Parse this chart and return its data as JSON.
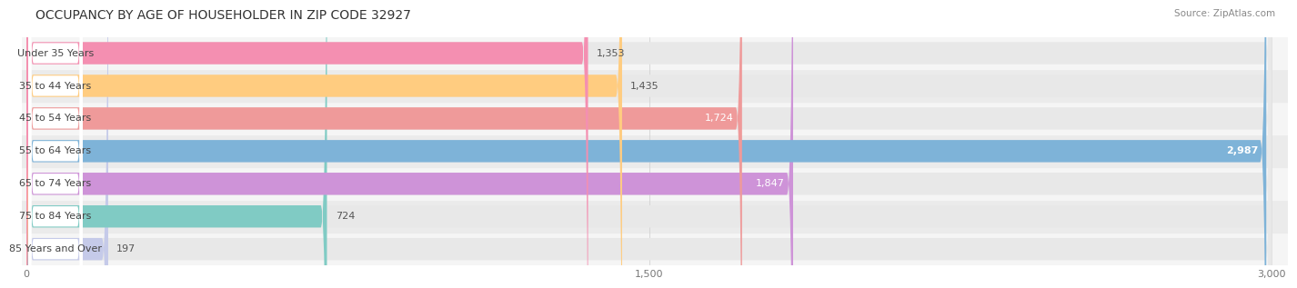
{
  "title": "OCCUPANCY BY AGE OF HOUSEHOLDER IN ZIP CODE 32927",
  "source": "Source: ZipAtlas.com",
  "categories": [
    "Under 35 Years",
    "35 to 44 Years",
    "45 to 54 Years",
    "55 to 64 Years",
    "65 to 74 Years",
    "75 to 84 Years",
    "85 Years and Over"
  ],
  "values": [
    1353,
    1435,
    1724,
    2987,
    1847,
    724,
    197
  ],
  "bar_colors": [
    "#F48FB1",
    "#FFCC80",
    "#EF9A9A",
    "#7EB3D8",
    "#CE93D8",
    "#80CBC4",
    "#C5CAE9"
  ],
  "xlim": [
    0,
    3000
  ],
  "xticks": [
    0,
    1500,
    3000
  ],
  "xtick_labels": [
    "0",
    "1,500",
    "3,000"
  ],
  "title_fontsize": 10,
  "label_fontsize": 8,
  "value_fontsize": 8,
  "background_color": "#FFFFFF",
  "bar_height": 0.68,
  "row_bg_colors": [
    "#F5F5F5",
    "#EBEBEB"
  ],
  "bar_bg_color": "#E8E8E8"
}
